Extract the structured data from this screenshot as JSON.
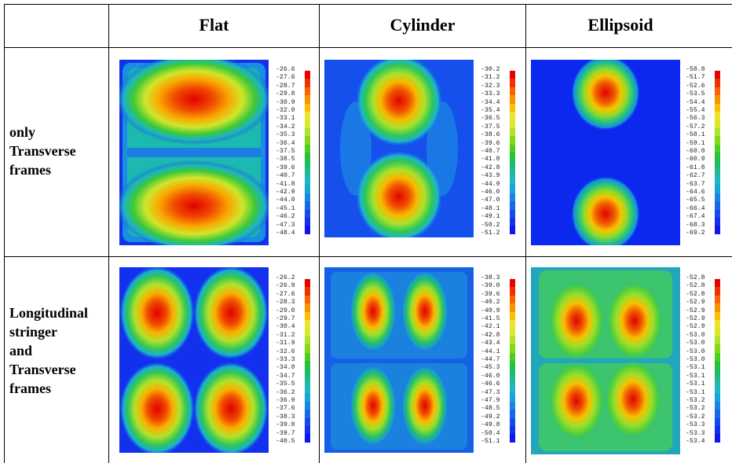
{
  "table": {
    "columns": [
      "Flat",
      "Cylinder",
      "Ellipsoid"
    ],
    "rows": [
      {
        "label_lines": [
          "only",
          "Transverse",
          "frames"
        ]
      },
      {
        "label_lines": [
          "Longitudinal",
          "stringer",
          "and",
          "Transverse",
          "frames"
        ]
      }
    ]
  },
  "panels": [
    {
      "id": "flat-transverse",
      "shape": "Flat",
      "structure": "only Transverse frames",
      "legend": [
        "-26.6",
        "-27.6",
        "-28.7",
        "-29.8",
        "-30.9",
        "-32.0",
        "-33.1",
        "-34.2",
        "-35.3",
        "-36.4",
        "-37.5",
        "-38.5",
        "-39.6",
        "-40.7",
        "-41.8",
        "-42.9",
        "-44.0",
        "-45.1",
        "-46.2",
        "-47.3",
        "-48.4"
      ]
    },
    {
      "id": "cylinder-transverse",
      "shape": "Cylinder",
      "structure": "only Transverse frames",
      "legend": [
        "-30.2",
        "-31.2",
        "-32.3",
        "-33.3",
        "-34.4",
        "-35.4",
        "-36.5",
        "-37.5",
        "-38.6",
        "-39.6",
        "-40.7",
        "-41.8",
        "-42.8",
        "-43.9",
        "-44.9",
        "-46.0",
        "-47.0",
        "-48.1",
        "-49.1",
        "-50.2",
        "-51.2"
      ]
    },
    {
      "id": "ellipsoid-transverse",
      "shape": "Ellipsoid",
      "structure": "only Transverse frames",
      "legend": [
        "-50.8",
        "-51.7",
        "-52.6",
        "-53.5",
        "-54.4",
        "-55.4",
        "-56.3",
        "-57.2",
        "-58.1",
        "-59.1",
        "-60.0",
        "-60.9",
        "-61.8",
        "-62.7",
        "-63.7",
        "-64.6",
        "-65.5",
        "-66.4",
        "-67.4",
        "-68.3",
        "-69.2"
      ]
    },
    {
      "id": "flat-stringer",
      "shape": "Flat",
      "structure": "Longitudinal stringer and Transverse frames",
      "legend": [
        "-26.2",
        "-26.9",
        "-27.6",
        "-28.3",
        "-29.0",
        "-29.7",
        "-30.4",
        "-31.2",
        "-31.9",
        "-32.6",
        "-33.3",
        "-34.0",
        "-34.7",
        "-35.5",
        "-36.2",
        "-36.9",
        "-37.6",
        "-38.3",
        "-39.0",
        "-39.7",
        "-40.5"
      ]
    },
    {
      "id": "cylinder-stringer",
      "shape": "Cylinder",
      "structure": "Longitudinal stringer and Transverse frames",
      "legend": [
        "-38.3",
        "-39.0",
        "-39.6",
        "-40.2",
        "-40.9",
        "-41.5",
        "-42.1",
        "-42.8",
        "-43.4",
        "-44.1",
        "-44.7",
        "-45.3",
        "-46.0",
        "-46.6",
        "-47.3",
        "-47.9",
        "-48.5",
        "-49.2",
        "-49.8",
        "-50.4",
        "-51.1"
      ]
    },
    {
      "id": "ellipsoid-stringer",
      "shape": "Ellipsoid",
      "structure": "Longitudinal stringer and Transverse frames",
      "legend": [
        "-52.8",
        "-52.8",
        "-52.8",
        "-52.9",
        "-52.9",
        "-52.9",
        "-52.9",
        "-53.0",
        "-53.0",
        "-53.0",
        "-53.0",
        "-53.1",
        "-53.1",
        "-53.1",
        "-53.1",
        "-53.2",
        "-53.2",
        "-53.2",
        "-53.3",
        "-53.3",
        "-53.4"
      ]
    }
  ],
  "colormap": [
    "#e80000",
    "#f03000",
    "#f76400",
    "#fa9200",
    "#f9bf00",
    "#f1e12c",
    "#d9e92a",
    "#aee427",
    "#7fda1c",
    "#4fce20",
    "#24c33a",
    "#1fbb6a",
    "#1fba9a",
    "#1bb9c4",
    "#19a3d8",
    "#1886e4",
    "#1668ea",
    "#1449ef",
    "#1230f2",
    "#0d16ee",
    "#0a00e6"
  ]
}
